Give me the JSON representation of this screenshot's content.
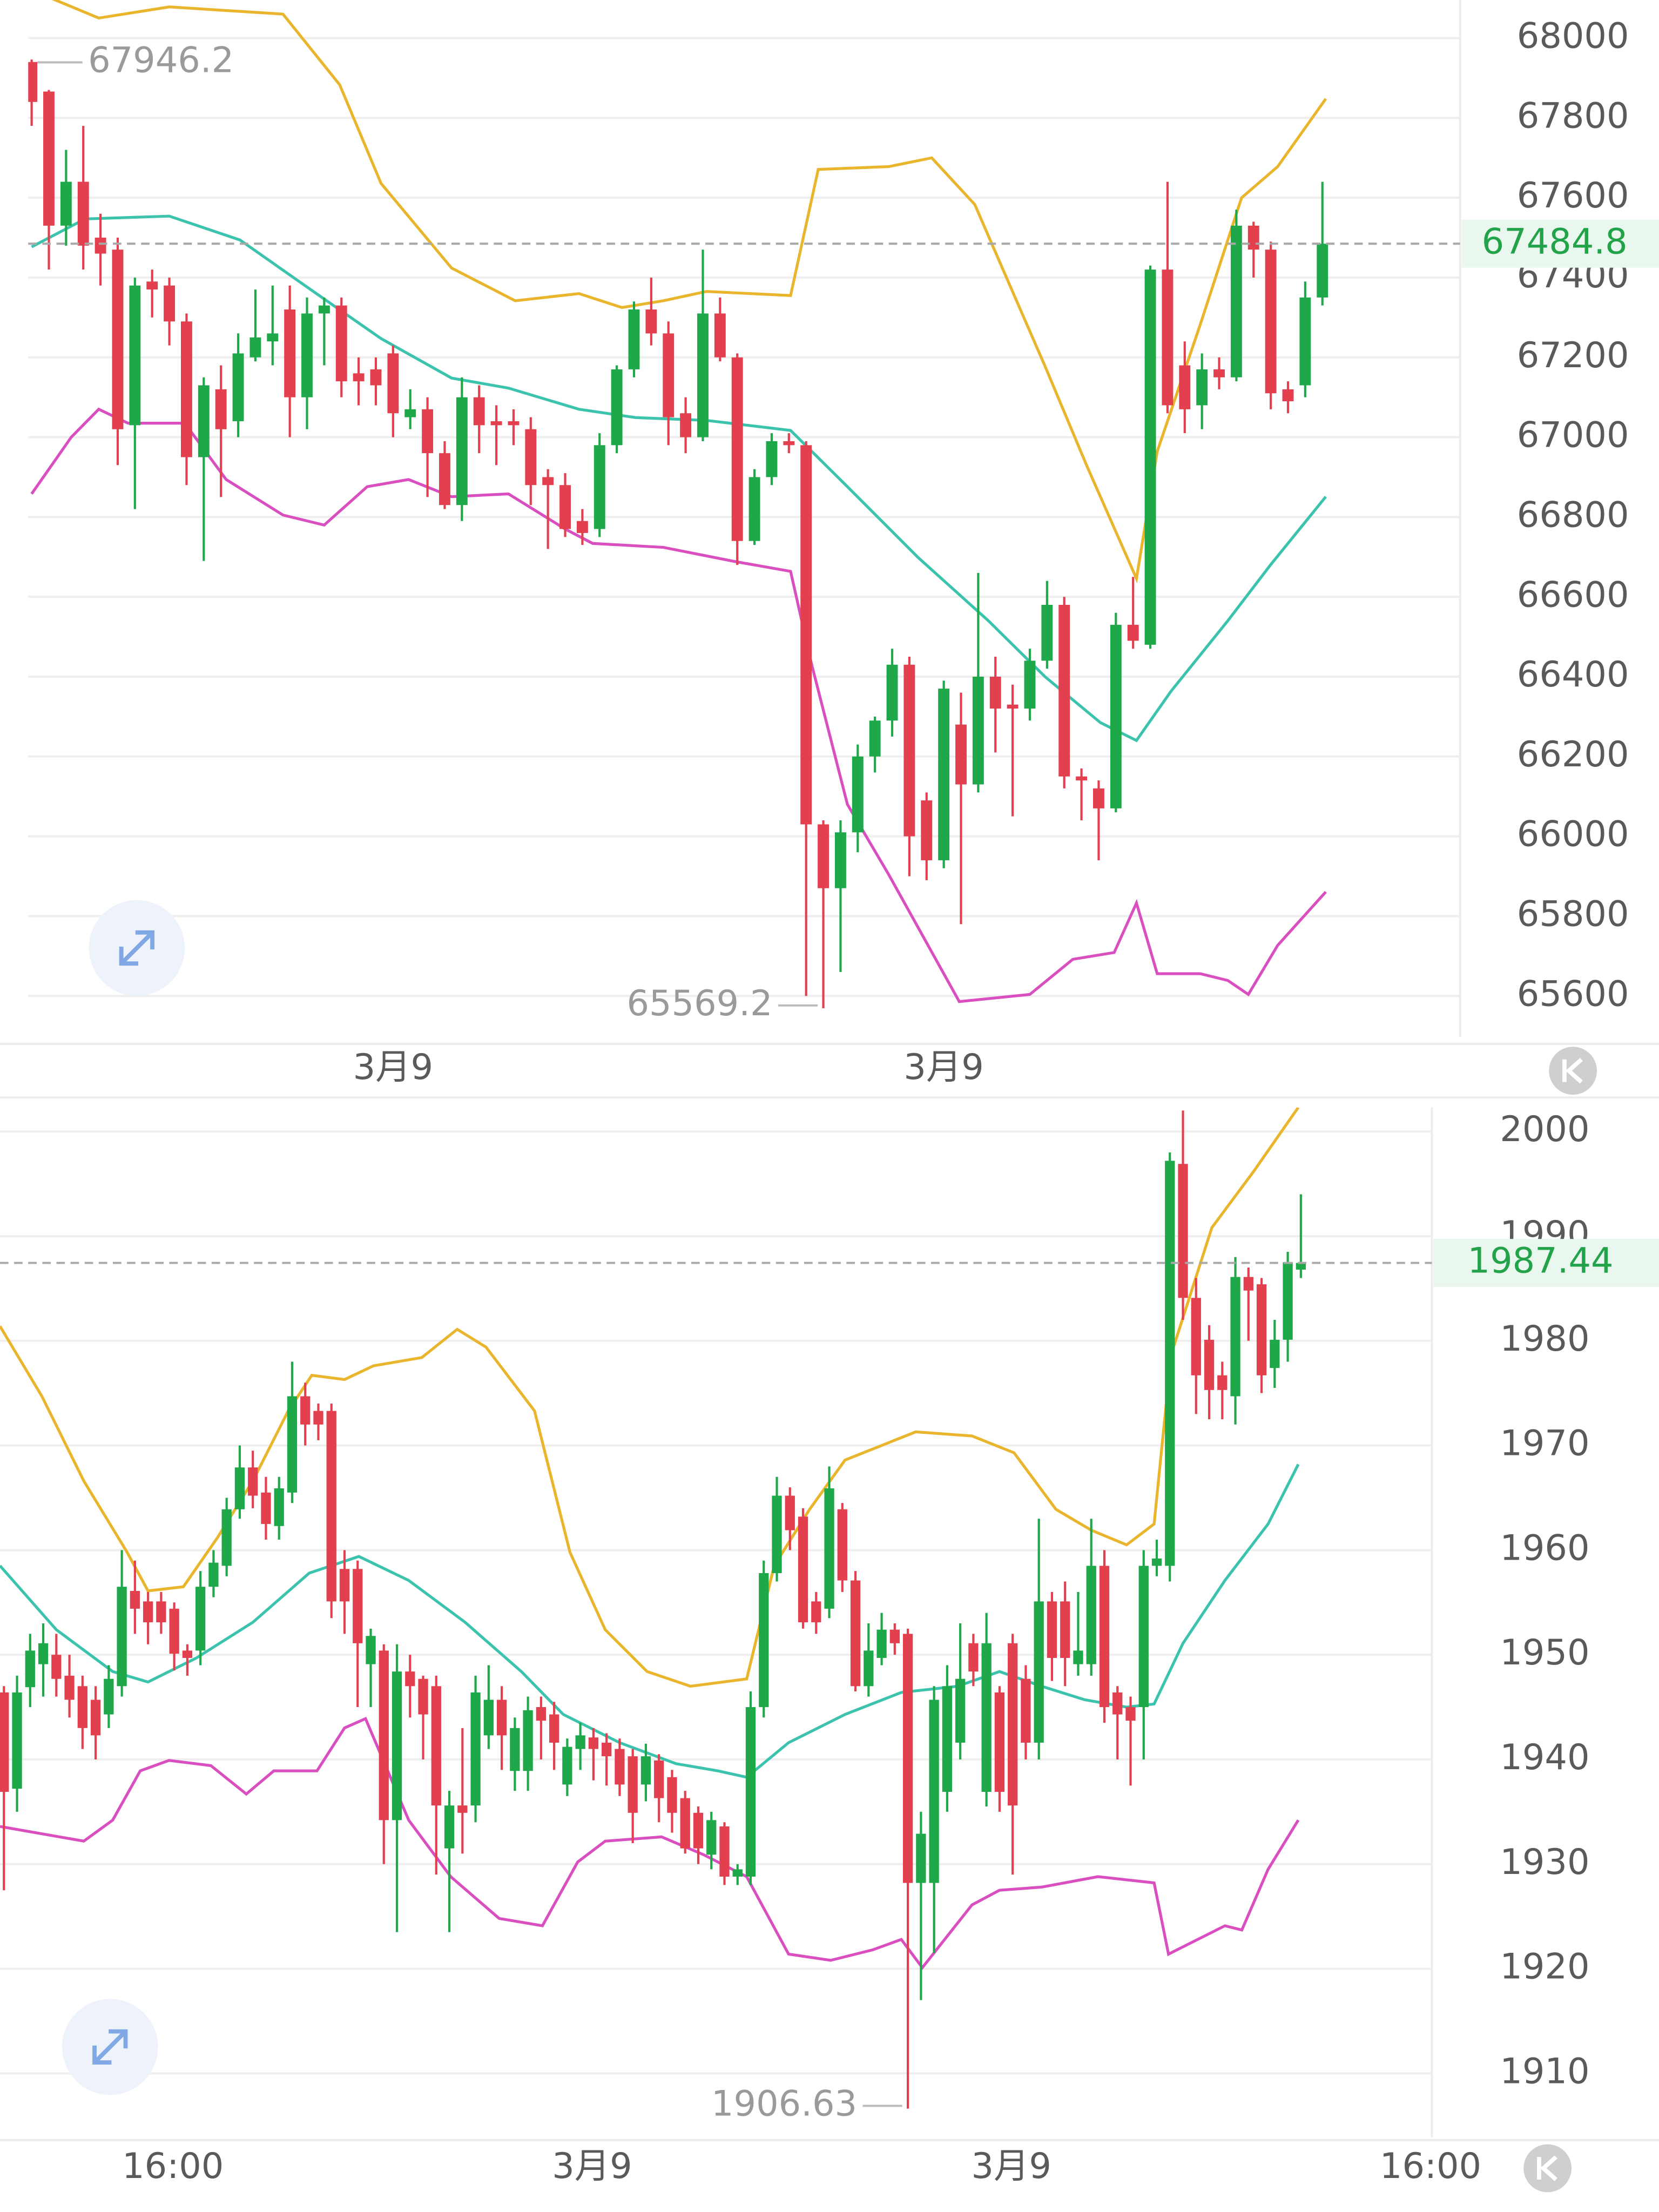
{
  "chart_data": [
    {
      "type": "candlestick",
      "open": [
        67940,
        67866,
        67530,
        67640,
        67500,
        67470,
        67030,
        67390,
        67380,
        67290,
        66950,
        67120,
        67040,
        67200,
        67240,
        67320,
        67100,
        67310,
        67330,
        67160,
        67170,
        67210,
        67050,
        67070,
        66960,
        66830,
        67100,
        67040,
        67040,
        67020,
        66900,
        66880,
        66790,
        66770,
        66980,
        67170,
        67320,
        67260,
        67060,
        67000,
        67310,
        67200,
        66740,
        66900,
        66990,
        66980,
        66030,
        65870,
        66010,
        66200,
        66290,
        66430,
        66090,
        65940,
        66280,
        66130,
        66400,
        66330,
        66320,
        66440,
        66580,
        66150,
        66120,
        66070,
        66530,
        66480,
        67420,
        67180,
        67080,
        67170,
        67150,
        67530,
        67470,
        67120,
        67130,
        67350
      ],
      "high": [
        67946.2,
        67870,
        67720,
        67780,
        67560,
        67500,
        67400,
        67420,
        67400,
        67310,
        67150,
        67180,
        67260,
        67370,
        67380,
        67380,
        67350,
        67350,
        67350,
        67200,
        67200,
        67230,
        67120,
        67100,
        66990,
        67150,
        67130,
        67080,
        67070,
        67050,
        66920,
        66910,
        66820,
        67010,
        67180,
        67340,
        67400,
        67290,
        67100,
        67470,
        67350,
        67210,
        66920,
        67010,
        67010,
        66990,
        66040,
        66040,
        66230,
        66300,
        66470,
        66450,
        66110,
        66390,
        66360,
        66660,
        66450,
        66380,
        66470,
        66640,
        66600,
        66170,
        66140,
        66560,
        66650,
        67430,
        67640,
        67240,
        67210,
        67200,
        67570,
        67540,
        67490,
        67140,
        67390,
        67640
      ],
      "low": [
        67780,
        67420,
        67480,
        67420,
        67380,
        66930,
        66820,
        67300,
        67230,
        66880,
        66690,
        66850,
        67000,
        67190,
        67180,
        67000,
        67020,
        67180,
        67100,
        67080,
        67080,
        67000,
        67020,
        66850,
        66820,
        66790,
        66960,
        66930,
        66980,
        66830,
        66720,
        66750,
        66730,
        66750,
        66960,
        67150,
        67230,
        66980,
        66960,
        66990,
        67190,
        66680,
        66730,
        66880,
        66960,
        65600,
        65569.2,
        65660,
        65960,
        66160,
        66250,
        65900,
        65890,
        65920,
        65780,
        66110,
        66210,
        66050,
        66290,
        66420,
        66120,
        66040,
        65940,
        66060,
        66470,
        66470,
        67060,
        67010,
        67020,
        67120,
        67140,
        67400,
        67070,
        67060,
        67100,
        67330
      ],
      "close": [
        67840,
        67530,
        67640,
        67480,
        67460,
        67020,
        67380,
        67370,
        67290,
        66950,
        67130,
        67020,
        67210,
        67250,
        67260,
        67100,
        67310,
        67330,
        67140,
        67140,
        67130,
        67060,
        67070,
        66960,
        66830,
        67100,
        67030,
        67030,
        67030,
        66880,
        66880,
        66770,
        66760,
        66980,
        67170,
        67320,
        67260,
        67050,
        67000,
        67310,
        67200,
        66740,
        66900,
        66990,
        66980,
        66030,
        65870,
        66010,
        66200,
        66290,
        66430,
        66000,
        65940,
        66370,
        66130,
        66400,
        66320,
        66320,
        66440,
        66580,
        66150,
        66140,
        66070,
        66530,
        66490,
        67420,
        67080,
        67070,
        67170,
        67150,
        67530,
        67470,
        67110,
        67090,
        67350,
        67484.8
      ],
      "up_color": "#1fa84a",
      "down_color": "#e2404f",
      "lines": [
        {
          "color": "#e8b52c",
          "x": [
            0,
            3.9,
            8,
            14.6,
            17.9,
            20.3,
            24.4,
            28.1,
            31.8,
            34.3,
            36.7,
            39.2,
            44.1,
            45.7,
            49.8,
            52.3,
            54.8,
            56.4,
            58.9,
            61.3,
            64.2,
            65.4,
            67.9,
            70.3,
            72.4,
            75.2
          ],
          "values": [
            68120,
            68050,
            68078,
            68060,
            67883,
            67636,
            67424,
            67342,
            67360,
            67325,
            67342,
            67365,
            67355,
            67671,
            67678,
            67700,
            67583,
            67424,
            67176,
            66929,
            66646,
            66964,
            67282,
            67600,
            67678,
            67848
          ]
        },
        {
          "color": "#3cc3ad",
          "x": [
            0,
            3.1,
            8,
            12.1,
            16.2,
            20.3,
            24.4,
            27.7,
            31.8,
            35.1,
            39.2,
            44.1,
            47.4,
            51.5,
            55.6,
            58.9,
            62.1,
            64.2,
            66.2,
            69.5,
            72,
            75.2
          ],
          "values": [
            67477,
            67547,
            67554,
            67494,
            67370,
            67247,
            67148,
            67123,
            67070,
            67049,
            67042,
            67017,
            66876,
            66699,
            66540,
            66399,
            66285,
            66240,
            66363,
            66540,
            66681,
            66851
          ]
        },
        {
          "color": "#d94fbf",
          "x": [
            0,
            2.3,
            3.9,
            5.6,
            8.9,
            11.3,
            14.6,
            17,
            19.5,
            21.9,
            24.4,
            27.7,
            31,
            32.6,
            36.7,
            40.8,
            44.1,
            45.3,
            47.4,
            49.8,
            53.9,
            58,
            60.5,
            62.9,
            64.2,
            65.4,
            67.9,
            69.5,
            70.7,
            72.4,
            75.2
          ],
          "values": [
            66858,
            67000,
            67070,
            67035,
            67035,
            66894,
            66805,
            66780,
            66876,
            66894,
            66851,
            66858,
            66770,
            66734,
            66724,
            66689,
            66664,
            66434,
            66080,
            65904,
            65586,
            65604,
            65692,
            65709,
            65833,
            65656,
            65656,
            65639,
            65604,
            65727,
            65861
          ]
        }
      ],
      "xlim": [
        -0.2,
        83
      ],
      "xticks": [
        {
          "value": 21,
          "label": "3月9"
        },
        {
          "value": 53,
          "label": "3月9"
        }
      ],
      "ylim": [
        65497.5,
        68095.4
      ],
      "yticks": [
        65600,
        65800,
        66000,
        66200,
        66400,
        66600,
        66800,
        67000,
        67200,
        67400,
        67600,
        67800,
        68000
      ],
      "grid": true
    },
    {
      "type": "candlestick",
      "open": [
        1946.4,
        1937.2,
        1946.9,
        1949.1,
        1950.0,
        1948.0,
        1947.0,
        1945.7,
        1944.3,
        1947.0,
        1956.1,
        1955.1,
        1955.1,
        1954.4,
        1950.4,
        1950.4,
        1956.5,
        1958.5,
        1963.9,
        1967.9,
        1965.5,
        1962.3,
        1965.5,
        1974.7,
        1973.3,
        1973.3,
        1958.2,
        1958.2,
        1949.1,
        1950.4,
        1934.2,
        1948.4,
        1947.7,
        1947.0,
        1931.5,
        1935.6,
        1935.6,
        1942.3,
        1945.7,
        1938.9,
        1938.9,
        1945.0,
        1944.3,
        1937.6,
        1941.0,
        1942.1,
        1941.6,
        1941.0,
        1940.3,
        1937.6,
        1939.9,
        1938.3,
        1936.3,
        1934.9,
        1930.9,
        1933.6,
        1928.8,
        1928.8,
        1945.0,
        1957.8,
        1965.2,
        1963.2,
        1955.1,
        1954.4,
        1963.9,
        1957.1,
        1947.0,
        1949.7,
        1952.4,
        1952.0,
        1928.2,
        1928.2,
        1936.9,
        1941.6,
        1951.1,
        1936.9,
        1946.4,
        1951.1,
        1947.7,
        1941.6,
        1955.1,
        1955.1,
        1949.1,
        1949.1,
        1958.5,
        1946.4,
        1945.0,
        1945.0,
        1958.5,
        1958.5,
        1996.9,
        1984.1,
        1980.1,
        1976.7,
        1974.7,
        1986.1,
        1985.4,
        1977.4,
        1980.1,
        1986.8
      ],
      "high": [
        1947,
        1948,
        1952,
        1953,
        1952,
        1950,
        1948,
        1947,
        1949,
        1960,
        1959,
        1956,
        1956,
        1955,
        1951,
        1958,
        1960,
        1965,
        1970,
        1969.5,
        1967,
        1967,
        1978,
        1976,
        1974,
        1974,
        1960,
        1959,
        1952.5,
        1951,
        1951,
        1950,
        1948,
        1948,
        1937,
        1943,
        1948,
        1949,
        1947,
        1944,
        1946,
        1946,
        1945.5,
        1942,
        1943.5,
        1943,
        1942.5,
        1942,
        1941,
        1941.5,
        1940.5,
        1939,
        1937,
        1935.5,
        1935,
        1934,
        1930,
        1946.5,
        1959,
        1967,
        1966,
        1964,
        1956,
        1968,
        1964.5,
        1958,
        1953,
        1954,
        1953,
        1952.5,
        1935,
        1947,
        1949,
        1953,
        1952,
        1954,
        1947,
        1952,
        1949,
        1963,
        1956,
        1957,
        1956,
        1963,
        1960,
        1947,
        1946,
        1960,
        1961,
        1998,
        2002,
        1986,
        1981.5,
        1978,
        1988,
        1987,
        1986,
        1982,
        1988.5,
        1994
      ],
      "low": [
        1927.5,
        1935,
        1945,
        1946,
        1946,
        1944,
        1941,
        1940,
        1943,
        1946,
        1952,
        1951,
        1952,
        1948.5,
        1948,
        1949,
        1955.5,
        1957.5,
        1963,
        1964,
        1961,
        1961,
        1964.5,
        1970,
        1970.5,
        1953.5,
        1952,
        1945,
        1945,
        1930,
        1923.5,
        1944,
        1940,
        1929,
        1923.5,
        1931,
        1934,
        1941,
        1939,
        1937,
        1937,
        1940,
        1939,
        1936.5,
        1939,
        1938,
        1937.5,
        1936.5,
        1932,
        1936,
        1934,
        1933,
        1931,
        1930,
        1929.5,
        1928,
        1928,
        1928,
        1944,
        1957,
        1960,
        1952.5,
        1952,
        1953.5,
        1956,
        1946.5,
        1946,
        1949,
        1950,
        1906.63,
        1917,
        1921.5,
        1935,
        1940,
        1947,
        1935.5,
        1935,
        1929,
        1940,
        1940,
        1947.5,
        1947,
        1948,
        1948,
        1943.5,
        1940,
        1937.5,
        1940,
        1957.5,
        1957,
        1982,
        1973,
        1972.5,
        1972.5,
        1972,
        1980,
        1975,
        1975.5,
        1978,
        1986
      ],
      "close": [
        1936.9,
        1946.4,
        1950.4,
        1951.1,
        1947.7,
        1945.7,
        1943.0,
        1942.3,
        1947.7,
        1956.5,
        1954.4,
        1953.1,
        1953.1,
        1950.1,
        1949.7,
        1956.5,
        1958.8,
        1963.9,
        1967.9,
        1965.2,
        1962.5,
        1965.9,
        1974.7,
        1972.0,
        1972.0,
        1955.1,
        1955.1,
        1951.1,
        1951.8,
        1934.2,
        1948.4,
        1947.0,
        1944.3,
        1935.6,
        1935.6,
        1934.9,
        1946.4,
        1945.7,
        1942.3,
        1943.0,
        1944.7,
        1943.7,
        1941.6,
        1941.2,
        1942.3,
        1941.0,
        1940.3,
        1937.6,
        1934.9,
        1940.3,
        1936.3,
        1934.9,
        1931.5,
        1931.5,
        1934.2,
        1928.8,
        1929.5,
        1945.0,
        1957.8,
        1965.2,
        1961.9,
        1953.1,
        1953.1,
        1965.9,
        1957.1,
        1947.0,
        1950.4,
        1952.4,
        1951.1,
        1928.2,
        1932.9,
        1945.7,
        1947.0,
        1947.7,
        1948.4,
        1951.1,
        1936.9,
        1935.6,
        1941.6,
        1955.1,
        1949.7,
        1949.7,
        1950.4,
        1958.5,
        1945.0,
        1944.3,
        1943.7,
        1958.5,
        1959.2,
        1997.2,
        1984.1,
        1976.7,
        1975.3,
        1975.3,
        1986.1,
        1984.8,
        1976.7,
        1980.1,
        1987.5,
        1987.44
      ],
      "up_color": "#1fa84a",
      "down_color": "#e2404f",
      "lines": [
        {
          "color": "#e8b52c",
          "x": [
            -0.3,
            2.9,
            6.1,
            9.4,
            11,
            13.7,
            16.3,
            19,
            21.7,
            23.5,
            26,
            28.2,
            31.9,
            34.6,
            36.8,
            40.5,
            43.2,
            45.9,
            49.1,
            52.4,
            56.7,
            58.8,
            61.5,
            64.2,
            69.6,
            73.9,
            77.1,
            80.3,
            83,
            85.7,
            87.8,
            89.1,
            92.2,
            95.4,
            98.8
          ],
          "values": [
            1981.4,
            1974.7,
            1966.6,
            1959.8,
            1956.1,
            1956.5,
            1961.2,
            1966.6,
            1973.3,
            1976.7,
            1976.3,
            1977.6,
            1978.4,
            1981.1,
            1979.4,
            1973.3,
            1959.8,
            1952.4,
            1948.4,
            1947.0,
            1947.7,
            1958.5,
            1963.9,
            1968.6,
            1971.3,
            1970.9,
            1969.3,
            1963.9,
            1961.9,
            1960.5,
            1962.5,
            1978.7,
            1990.8,
            1996.2,
            2002.3
          ]
        },
        {
          "color": "#3cc3ad",
          "x": [
            -0.3,
            4,
            8.3,
            11,
            14.7,
            19,
            23.3,
            27.1,
            30.9,
            35.2,
            39.5,
            42.7,
            47,
            51.3,
            54.5,
            56.7,
            59.9,
            64.2,
            68.5,
            72.8,
            76,
            79.2,
            82.5,
            85.7,
            87.8,
            90,
            93.2,
            96.5,
            98.8
          ],
          "values": [
            1958.5,
            1952.4,
            1948.4,
            1947.4,
            1949.7,
            1953.1,
            1957.8,
            1959.4,
            1957.1,
            1953.1,
            1948.4,
            1944.3,
            1941.6,
            1939.6,
            1938.9,
            1938.3,
            1941.6,
            1944.3,
            1946.4,
            1947.0,
            1948.4,
            1947.0,
            1945.7,
            1945.0,
            1945.3,
            1951.1,
            1957.1,
            1962.5,
            1968.2
          ]
        },
        {
          "color": "#d94fbf",
          "x": [
            -0.3,
            2.9,
            6.1,
            8.3,
            10.4,
            12.6,
            15.8,
            18.5,
            20.6,
            23.9,
            26,
            27.6,
            30.9,
            34.1,
            37.8,
            41.1,
            43.8,
            45.9,
            50.2,
            53.4,
            56.7,
            59.9,
            63.1,
            66.3,
            68.5,
            70.1,
            73.9,
            76,
            79.2,
            83.5,
            87.8,
            88.9,
            93.2,
            94.5,
            96.5,
            98.8
          ],
          "values": [
            1933.6,
            1932.9,
            1932.2,
            1934.2,
            1938.9,
            1939.9,
            1939.4,
            1936.7,
            1938.9,
            1938.9,
            1943.0,
            1943.9,
            1934.2,
            1928.8,
            1924.8,
            1924.1,
            1930.2,
            1932.2,
            1932.6,
            1930.9,
            1928.8,
            1921.4,
            1920.8,
            1921.8,
            1922.8,
            1920.1,
            1926.1,
            1927.5,
            1927.8,
            1928.8,
            1928.2,
            1921.4,
            1924.1,
            1923.7,
            1929.5,
            1934.2
          ]
        }
      ],
      "xlim": [
        -0.3,
        109
      ],
      "xticks": [
        {
          "value": 12.9,
          "label": "16:00"
        },
        {
          "value": 44.9,
          "label": "3月9"
        },
        {
          "value": 76.9,
          "label": "3月9"
        },
        {
          "value": 108.9,
          "label": "16:00"
        }
      ],
      "ylim": [
        1903.9,
        2002.3
      ],
      "yticks": [
        1910,
        1920,
        1930,
        1940,
        1950,
        1960,
        1970,
        1980,
        1990,
        2000
      ],
      "grid": true
    }
  ]
}
